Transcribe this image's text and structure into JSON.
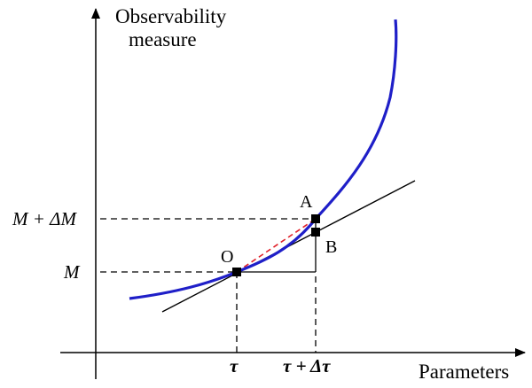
{
  "y_axis_title_line1": "Observability",
  "y_axis_title_line2": "measure",
  "x_axis_title": "Parameters",
  "y_tick_upper": "M + ΔM",
  "y_tick_lower": "M",
  "x_tick_left": "τ",
  "x_tick_right": "τ + Δτ",
  "point_o": "O",
  "point_a": "A",
  "point_b": "B",
  "colors": {
    "curve": "#1f1fc8",
    "secant": "#e0202a",
    "lines": "#000000"
  }
}
